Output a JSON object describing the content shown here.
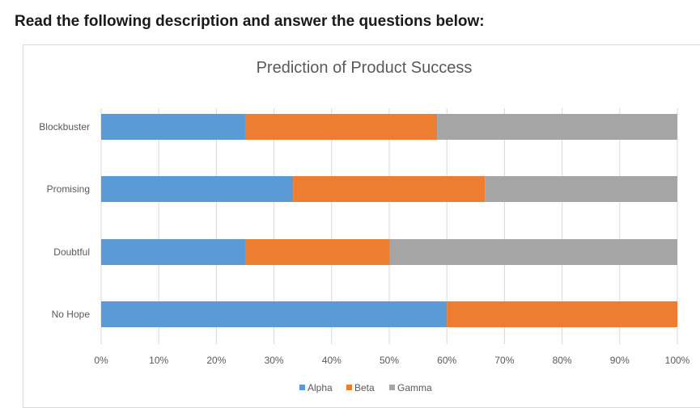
{
  "instruction": "Read the following description and answer the questions below:",
  "colors": {
    "Alpha": "#5b9bd5",
    "Beta": "#ed7d31",
    "Gamma": "#a5a5a5",
    "grid": "#d9d9d9",
    "axis_text": "#595959",
    "title_text": "#595959"
  },
  "chart_data": {
    "type": "bar",
    "orientation": "horizontal",
    "stacked": "percent",
    "title": "Prediction of Product Success",
    "categories": [
      "Blockbuster",
      "Promising",
      "Doubtful",
      "No Hope"
    ],
    "series": [
      {
        "name": "Alpha",
        "values": [
          25,
          33.3,
          25,
          60
        ]
      },
      {
        "name": "Beta",
        "values": [
          33.3,
          33.3,
          25,
          40
        ]
      },
      {
        "name": "Gamma",
        "values": [
          41.7,
          33.4,
          50,
          0
        ]
      }
    ],
    "xlim": [
      0,
      100
    ],
    "xticks": [
      "0%",
      "10%",
      "20%",
      "30%",
      "40%",
      "50%",
      "60%",
      "70%",
      "80%",
      "90%",
      "100%"
    ],
    "grid": true,
    "legend_position": "bottom"
  }
}
